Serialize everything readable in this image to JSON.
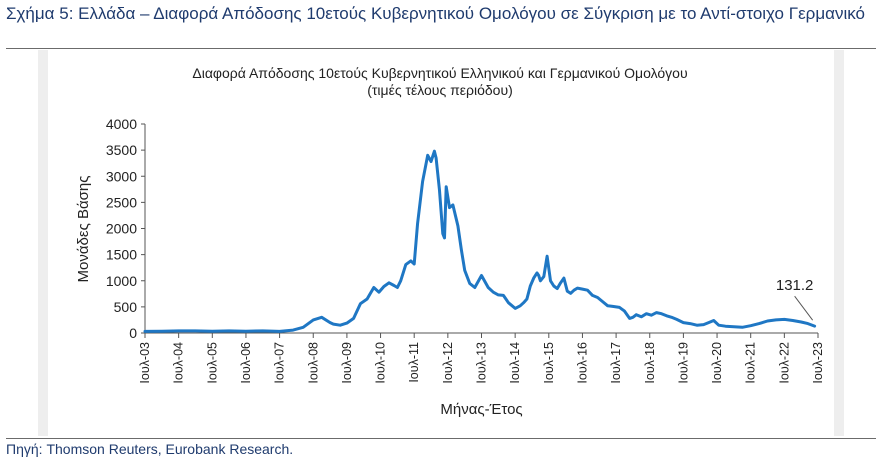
{
  "figure": {
    "title": "Σχήμα 5: Ελλάδα – Διαφορά Απόδοσης 10ετούς Κυβερνητικού Ομολόγου σε Σύγκριση με το Αντί-στοιχο Γερμανικό",
    "source": "Πηγή: Thomson Reuters, Eurobank Research."
  },
  "chart_data": {
    "type": "line",
    "title": "Διαφορά Απόδοσης 10ετούς Κυβερνητικού Ελληνικού και Γερμανικού Ομολόγου",
    "subtitle": "(τιμές τέλους περιόδου)",
    "xlabel": "Μήνας-Έτος",
    "ylabel": "Μονάδες Βάσης",
    "ylim": [
      0,
      4000
    ],
    "yticks": [
      0,
      500,
      1000,
      1500,
      2000,
      2500,
      3000,
      3500,
      4000
    ],
    "xlim": [
      2003.5,
      2023.5
    ],
    "xticks": [
      "Ιουλ-03",
      "Ιουλ-04",
      "Ιουλ-05",
      "Ιουλ-06",
      "Ιουλ-07",
      "Ιουλ-08",
      "Ιουλ-09",
      "Ιουλ-10",
      "Ιουλ-11",
      "Ιουλ-12",
      "Ιουλ-13",
      "Ιουλ-14",
      "Ιουλ-15",
      "Ιουλ-16",
      "Ιουλ-17",
      "Ιουλ-18",
      "Ιουλ-19",
      "Ιουλ-20",
      "Ιουλ-21",
      "Ιουλ-22",
      "Ιουλ-23"
    ],
    "grid": false,
    "color": "#1f77c4",
    "annotation": {
      "text": "131.2",
      "x": 2023.4,
      "y": 131.2
    },
    "series": [
      {
        "x": [
          2003.5,
          2004.0,
          2004.5,
          2005.0,
          2005.5,
          2006.0,
          2006.5,
          2007.0,
          2007.5,
          2007.9,
          2008.2,
          2008.5,
          2008.75,
          2009.0,
          2009.1,
          2009.3,
          2009.5,
          2009.7,
          2009.9,
          2010.1,
          2010.3,
          2010.45,
          2010.6,
          2010.75,
          2010.9,
          2011.0,
          2011.1,
          2011.25,
          2011.4,
          2011.5,
          2011.6,
          2011.75,
          2011.9,
          2012.0,
          2012.1,
          2012.15,
          2012.25,
          2012.35,
          2012.4,
          2012.45,
          2012.55,
          2012.65,
          2012.8,
          2012.9,
          2013.0,
          2013.15,
          2013.3,
          2013.5,
          2013.7,
          2013.85,
          2014.0,
          2014.15,
          2014.3,
          2014.5,
          2014.65,
          2014.75,
          2014.85,
          2014.95,
          2015.05,
          2015.15,
          2015.2,
          2015.25,
          2015.35,
          2015.45,
          2015.55,
          2015.65,
          2015.75,
          2015.85,
          2015.95,
          2016.05,
          2016.15,
          2016.25,
          2016.35,
          2016.5,
          2016.65,
          2016.8,
          2016.95,
          2017.1,
          2017.25,
          2017.4,
          2017.5,
          2017.6,
          2017.75,
          2017.9,
          2018.0,
          2018.1,
          2018.25,
          2018.4,
          2018.55,
          2018.7,
          2018.85,
          2019.0,
          2019.15,
          2019.3,
          2019.5,
          2019.7,
          2019.9,
          2020.1,
          2020.25,
          2020.4,
          2020.55,
          2020.75,
          2021.0,
          2021.25,
          2021.5,
          2021.75,
          2022.0,
          2022.25,
          2022.5,
          2022.75,
          2023.0,
          2023.2,
          2023.4
        ],
        "y": [
          30,
          35,
          40,
          40,
          35,
          40,
          35,
          40,
          30,
          55,
          110,
          250,
          300,
          200,
          170,
          150,
          190,
          280,
          560,
          650,
          870,
          780,
          890,
          960,
          910,
          870,
          1000,
          1310,
          1380,
          1320,
          2100,
          2900,
          3400,
          3280,
          3480,
          3350,
          2750,
          1900,
          1820,
          2800,
          2400,
          2450,
          2050,
          1600,
          1200,
          950,
          870,
          1100,
          870,
          780,
          730,
          720,
          580,
          470,
          520,
          580,
          650,
          900,
          1050,
          1150,
          1100,
          1000,
          1080,
          1470,
          1000,
          900,
          850,
          960,
          1050,
          800,
          760,
          820,
          860,
          840,
          820,
          720,
          680,
          600,
          520,
          510,
          500,
          490,
          420,
          280,
          300,
          350,
          310,
          370,
          340,
          390,
          370,
          330,
          300,
          260,
          200,
          180,
          150,
          160,
          200,
          240,
          150,
          130,
          120,
          110,
          140,
          180,
          230,
          250,
          260,
          240,
          210,
          180,
          131.2
        ]
      }
    ]
  }
}
